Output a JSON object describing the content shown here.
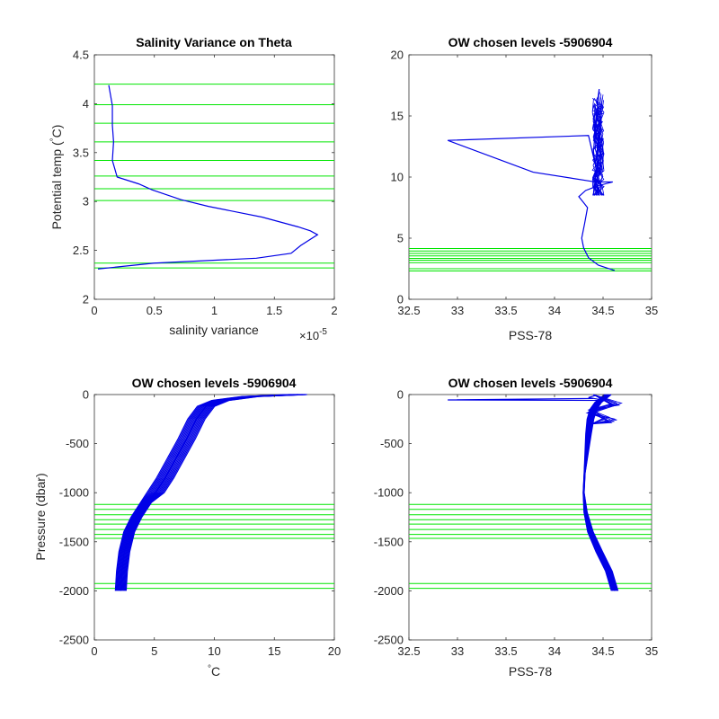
{
  "colors": {
    "profile": "#0000e6",
    "levels": "#00e600",
    "axis": "#262626"
  },
  "chart_data": [
    {
      "type": "line",
      "title": "Salinity Variance on Theta",
      "xlabel": "salinity variance",
      "ylabel": "Potential temp (°C)",
      "ylabel_parts": [
        "Potential temp (",
        "°",
        "C)"
      ],
      "x_exponent_label": "×10",
      "x_exponent_power": "-5",
      "xlim": [
        0,
        2
      ],
      "ylim": [
        2,
        4.5
      ],
      "x_ticks": [
        0,
        0.5,
        1,
        1.5,
        2
      ],
      "x_tick_labels": [
        "0",
        "0.5",
        "1",
        "1.5",
        "2"
      ],
      "y_ticks": [
        2,
        2.5,
        3,
        3.5,
        4,
        4.5
      ],
      "y_tick_labels": [
        "2",
        "2.5",
        "3",
        "3.5",
        "4",
        "4.5"
      ],
      "series": [
        {
          "x": [
            0.03,
            0.5,
            1.35,
            1.64,
            1.72,
            1.86,
            1.8,
            1.7,
            1.4,
            0.95,
            0.72,
            0.48,
            0.37,
            0.19,
            0.15,
            0.16,
            0.15,
            0.15,
            0.12
          ],
          "y": [
            2.31,
            2.37,
            2.42,
            2.47,
            2.55,
            2.66,
            2.7,
            2.74,
            2.84,
            2.95,
            3.02,
            3.12,
            3.18,
            3.25,
            3.42,
            3.61,
            3.78,
            3.98,
            4.19
          ]
        }
      ],
      "level_lines": [
        2.32,
        2.37,
        3.01,
        3.13,
        3.26,
        3.42,
        3.61,
        3.8,
        3.99,
        4.2
      ]
    },
    {
      "type": "line",
      "title": "OW chosen levels -5906904",
      "xlabel": "PSS-78",
      "ylabel": "",
      "xlim": [
        32.5,
        35
      ],
      "ylim": [
        0,
        20
      ],
      "x_ticks": [
        32.5,
        33,
        33.5,
        34,
        34.5,
        35
      ],
      "x_tick_labels": [
        "32.5",
        "33",
        "33.5",
        "34",
        "34.5",
        "35"
      ],
      "y_ticks": [
        0,
        5,
        10,
        15,
        20
      ],
      "y_tick_labels": [
        "0",
        "5",
        "10",
        "15",
        "20"
      ],
      "series": [
        {
          "x": [
            34.62,
            34.45,
            34.35,
            34.3,
            34.28,
            34.31,
            34.34,
            34.3,
            34.25,
            34.32,
            34.45,
            34.6,
            34.42,
            33.78,
            32.9,
            34.35,
            34.42,
            34.48,
            34.44,
            34.46,
            34.4,
            34.45
          ],
          "y": [
            2.35,
            2.8,
            3.4,
            4.2,
            5.0,
            6.2,
            7.5,
            7.9,
            8.4,
            8.9,
            9.3,
            9.6,
            9.6,
            10.4,
            13.0,
            13.4,
            11.0,
            14.5,
            16.0,
            17.2,
            12.0,
            9.5
          ]
        }
      ],
      "band_profiles": {
        "count": 22,
        "y_range": [
          8.5,
          17.2
        ],
        "x_center": 34.45,
        "x_spread": 0.12
      },
      "level_lines": [
        2.32,
        2.5,
        3.0,
        3.2,
        3.35,
        3.55,
        3.75,
        3.95,
        4.15
      ]
    },
    {
      "type": "line",
      "title": "OW chosen levels -5906904",
      "xlabel": "°C",
      "xlabel_parts": [
        "°",
        "C"
      ],
      "ylabel": "Pressure (dbar)",
      "xlim": [
        0,
        20
      ],
      "ylim": [
        -2500,
        0
      ],
      "x_ticks": [
        0,
        5,
        10,
        15,
        20
      ],
      "x_tick_labels": [
        "0",
        "5",
        "10",
        "15",
        "20"
      ],
      "y_ticks": [
        -2500,
        -2000,
        -1500,
        -1000,
        -500,
        0
      ],
      "y_tick_labels": [
        "-2500",
        "-2000",
        "-1500",
        "-1000",
        "-500",
        "0"
      ],
      "series": [
        {
          "x": [
            2.2,
            2.3,
            2.5,
            2.9,
            3.5,
            4.3,
            5.1,
            5.9,
            6.8,
            7.7,
            8.5,
            9.3,
            10.5,
            13.0,
            17.0
          ],
          "y": [
            -2000,
            -1800,
            -1600,
            -1400,
            -1250,
            -1100,
            -1000,
            -850,
            -650,
            -450,
            -250,
            -120,
            -60,
            -20,
            0
          ]
        }
      ],
      "band_width_c": 0.9,
      "level_lines": [
        -1120,
        -1170,
        -1225,
        -1275,
        -1320,
        -1375,
        -1425,
        -1465,
        -1925,
        -1975
      ]
    },
    {
      "type": "line",
      "title": "OW chosen levels -5906904",
      "xlabel": "PSS-78",
      "ylabel": "",
      "xlim": [
        32.5,
        35
      ],
      "ylim": [
        -2500,
        0
      ],
      "x_ticks": [
        32.5,
        33,
        33.5,
        34,
        34.5,
        35
      ],
      "x_tick_labels": [
        "32.5",
        "33",
        "33.5",
        "34",
        "34.5",
        "35"
      ],
      "y_ticks": [
        -2500,
        -2000,
        -1500,
        -1000,
        -500,
        0
      ],
      "y_tick_labels": [
        "-2500",
        "-2000",
        "-1500",
        "-1000",
        "-500",
        "0"
      ],
      "series": [
        {
          "x": [
            34.62,
            34.56,
            34.46,
            34.37,
            34.32,
            34.3,
            34.31,
            34.33,
            34.35,
            34.37,
            34.4,
            34.45,
            34.55
          ],
          "y": [
            -2000,
            -1800,
            -1600,
            -1400,
            -1200,
            -1000,
            -800,
            -600,
            -400,
            -250,
            -150,
            -80,
            0
          ]
        },
        {
          "x": [
            34.4,
            32.9,
            34.52,
            34.35,
            34.42
          ],
          "y": [
            -40,
            -55,
            -60,
            -30,
            -10
          ]
        }
      ],
      "level_lines": [
        -1120,
        -1170,
        -1225,
        -1275,
        -1320,
        -1375,
        -1425,
        -1465,
        -1925,
        -1975
      ]
    }
  ]
}
